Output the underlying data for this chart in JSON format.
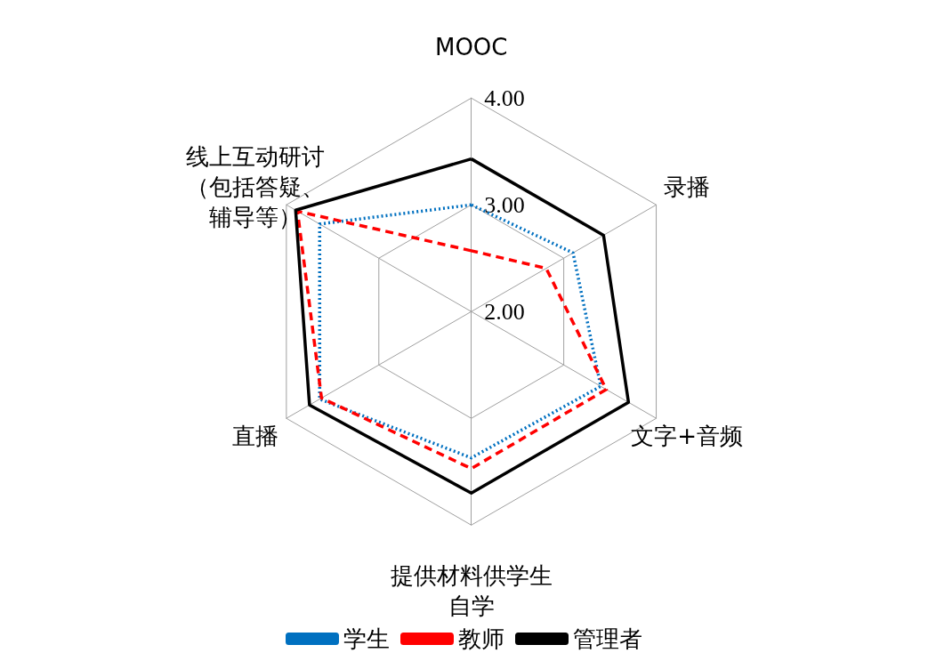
{
  "chart_data": {
    "type": "radar",
    "categories": [
      "MOOC",
      "录播",
      "文字+音频",
      "提供材料供学生自学",
      "直播",
      "线上互动研讨（包括答疑、辅导等）"
    ],
    "ylim": [
      2,
      4
    ],
    "yticks": [
      {
        "value": 2,
        "label": "2.00"
      },
      {
        "value": 3,
        "label": "3.00"
      },
      {
        "value": 4,
        "label": "4.00"
      }
    ],
    "legend": "bottom",
    "grid": true,
    "marker": "none",
    "series": [
      {
        "name": "学生",
        "color": "#0070c0",
        "line_style": "dotted",
        "values": [
          3.0,
          3.1,
          3.4,
          3.37,
          3.64,
          3.64
        ]
      },
      {
        "name": "教师",
        "color": "#ff0000",
        "line_style": "dashed",
        "values": [
          2.57,
          2.81,
          3.46,
          3.47,
          3.62,
          3.88
        ]
      },
      {
        "name": "管理者",
        "color": "#000000",
        "line_style": "solid",
        "values": [
          3.43,
          3.43,
          3.7,
          3.7,
          3.75,
          3.9
        ]
      }
    ]
  }
}
